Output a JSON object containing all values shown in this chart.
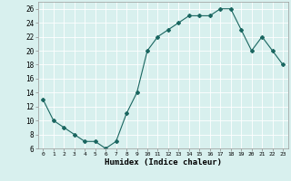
{
  "x": [
    0,
    1,
    2,
    3,
    4,
    5,
    6,
    7,
    8,
    9,
    10,
    11,
    12,
    13,
    14,
    15,
    16,
    17,
    18,
    19,
    20,
    21,
    22,
    23
  ],
  "y": [
    13,
    10,
    9,
    8,
    7,
    7,
    6,
    7,
    11,
    14,
    20,
    22,
    23,
    24,
    25,
    25,
    25,
    26,
    26,
    23,
    20,
    22,
    20,
    18
  ],
  "line_color": "#1a6660",
  "marker": "D",
  "marker_size": 2.0,
  "bg_color": "#d8f0ee",
  "grid_color": "#ffffff",
  "xlabel": "Humidex (Indice chaleur)",
  "ylim": [
    6,
    27
  ],
  "xlim": [
    -0.5,
    23.5
  ],
  "yticks": [
    6,
    8,
    10,
    12,
    14,
    16,
    18,
    20,
    22,
    24,
    26
  ],
  "xticks": [
    0,
    1,
    2,
    3,
    4,
    5,
    6,
    7,
    8,
    9,
    10,
    11,
    12,
    13,
    14,
    15,
    16,
    17,
    18,
    19,
    20,
    21,
    22,
    23
  ]
}
